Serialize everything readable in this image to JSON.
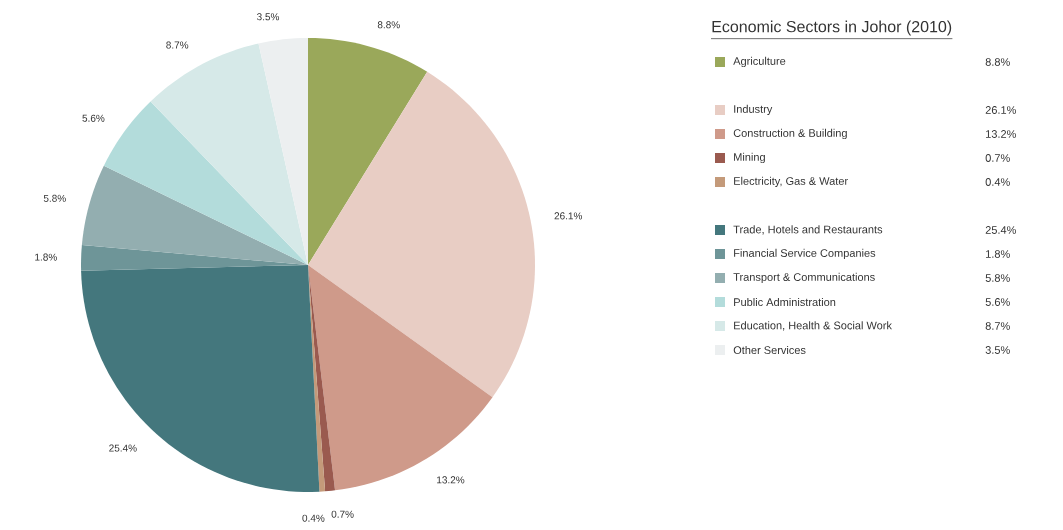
{
  "chart_data": {
    "type": "pie",
    "title": "Economic Sectors in Johor (2010)",
    "categories": [
      "Agriculture",
      "Industry",
      "Construction & Building",
      "Mining",
      "Electricity, Gas & Water",
      "Trade, Hotels and Restaurants",
      "Financial Service Companies",
      "Transport & Communications",
      "Public Administration",
      "Education, Health & Social Work",
      "Other Services"
    ],
    "values": [
      8.8,
      26.1,
      13.2,
      0.7,
      0.4,
      25.4,
      1.8,
      5.8,
      5.6,
      8.7,
      3.5
    ],
    "value_labels": [
      "8.8%",
      "26.1%",
      "13.2%",
      "0.7%",
      "0.4%",
      "25.4%",
      "1.8%",
      "5.8%",
      "5.6%",
      "8.7%",
      "3.5%"
    ],
    "colors": [
      "#9aa85a",
      "#e8cdc4",
      "#cf9a8a",
      "#9a5a4f",
      "#c49a7a",
      "#44777d",
      "#6e9598",
      "#93aeb0",
      "#b3dcdb",
      "#d6e9e8",
      "#eceff0"
    ],
    "legend": "right"
  }
}
